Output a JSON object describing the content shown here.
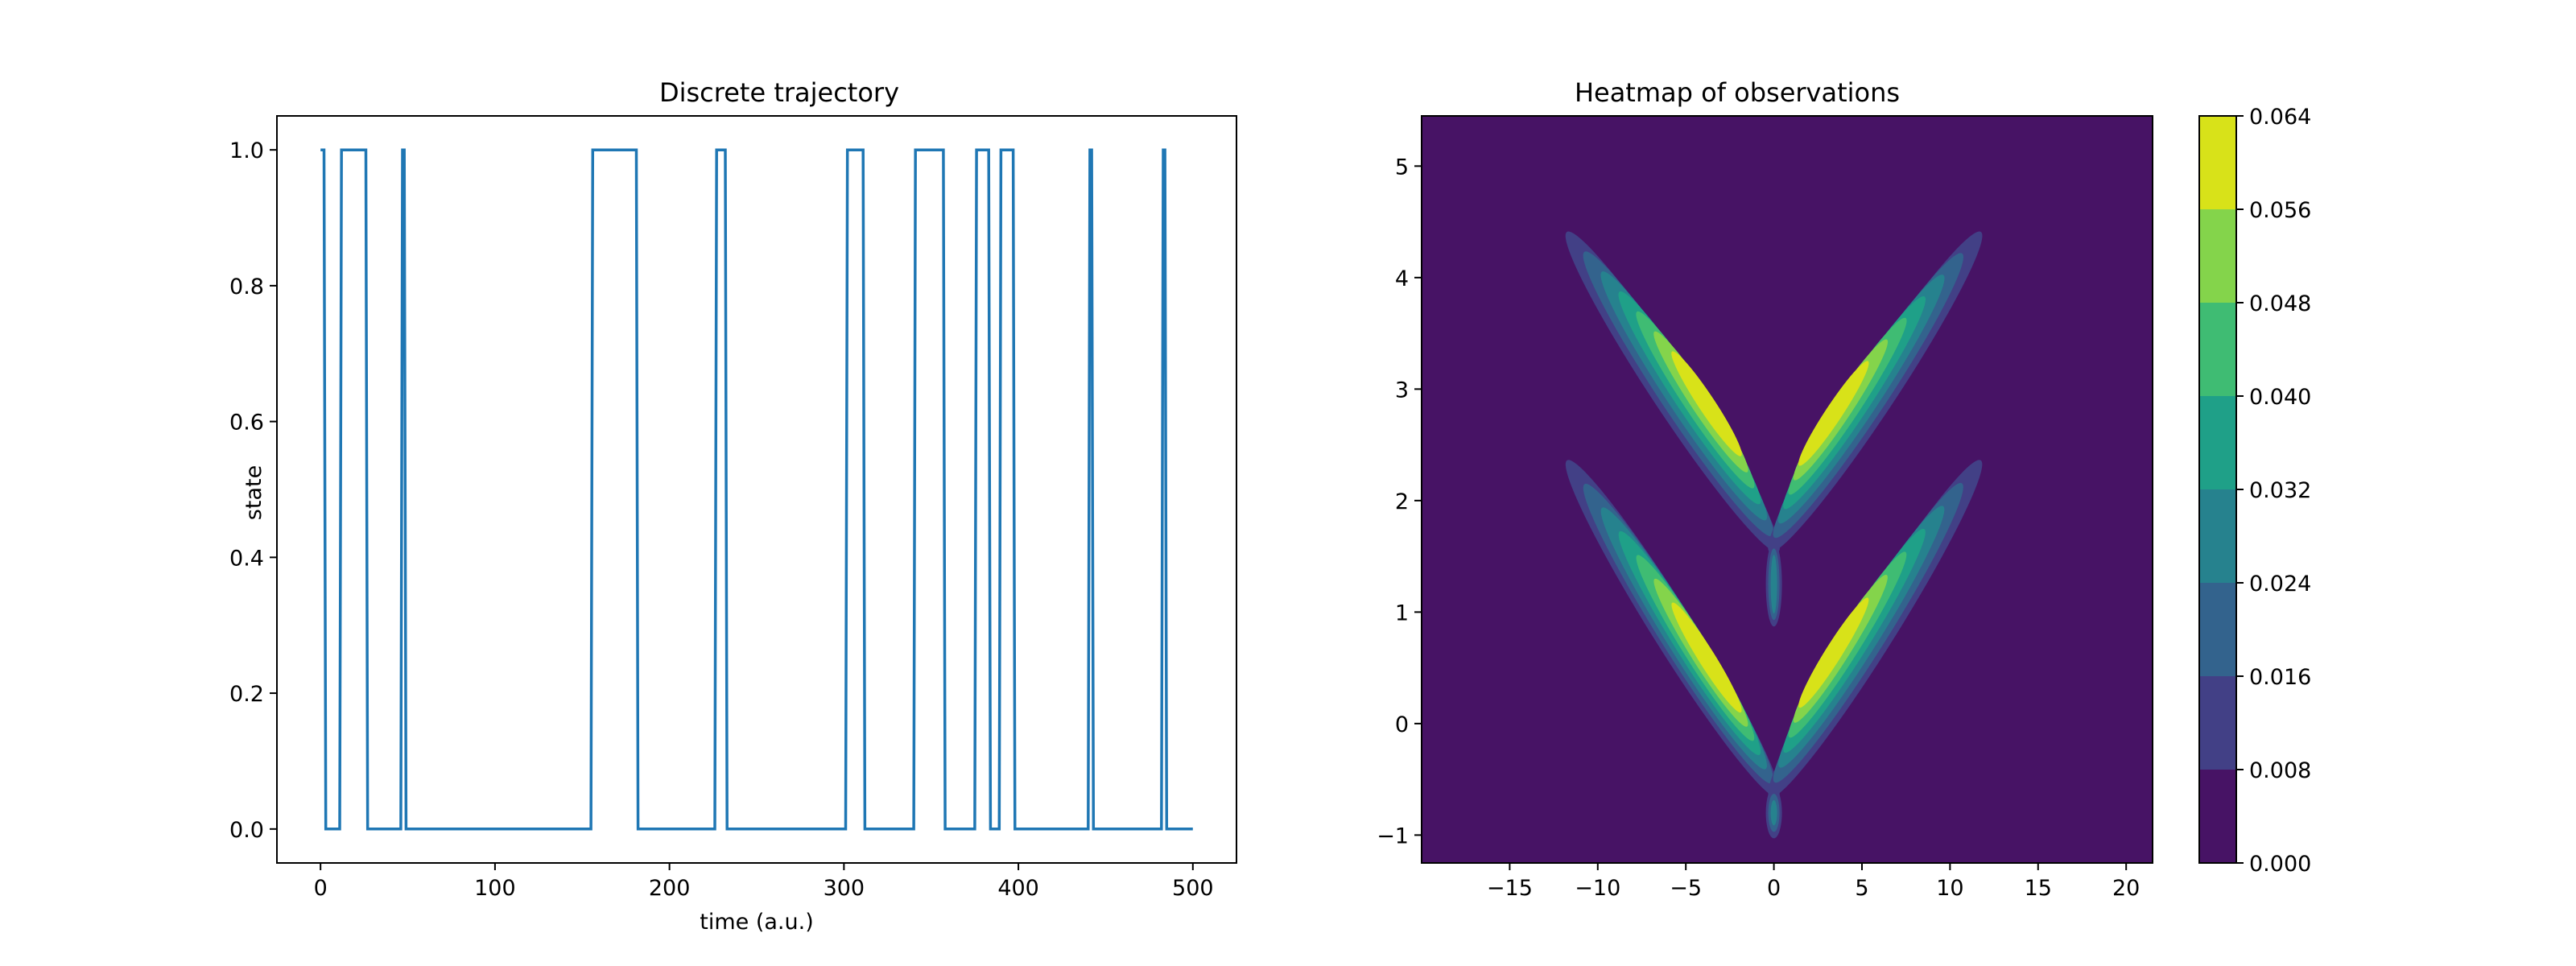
{
  "chart_data": [
    {
      "type": "line",
      "title": "Discrete trajectory",
      "xlabel": "time (a.u.)",
      "ylabel": "state",
      "xlim": [
        -25,
        525
      ],
      "ylim": [
        -0.05,
        1.05
      ],
      "xticks": [
        0,
        100,
        200,
        300,
        400,
        500
      ],
      "yticks": [
        0.0,
        0.2,
        0.4,
        0.6,
        0.8,
        1.0
      ],
      "xtick_labels": [
        "0",
        "100",
        "200",
        "300",
        "400",
        "500"
      ],
      "ytick_labels": [
        "0.0",
        "0.2",
        "0.4",
        "0.6",
        "0.8",
        "1.0"
      ],
      "grid": false,
      "series": [
        {
          "color": "#1f77b4",
          "x": [
            0,
            2,
            3,
            11,
            12,
            26,
            27,
            46,
            47,
            48,
            49,
            155,
            156,
            181,
            182,
            226,
            227,
            232,
            233,
            301,
            302,
            311,
            312,
            340,
            341,
            357,
            358,
            375,
            376,
            383,
            384,
            389,
            390,
            397,
            398,
            440,
            441,
            442,
            443,
            482,
            483,
            484,
            485,
            500
          ],
          "y": [
            1,
            1,
            0,
            0,
            1,
            1,
            0,
            0,
            1,
            1,
            0,
            0,
            1,
            1,
            0,
            0,
            1,
            1,
            0,
            0,
            1,
            1,
            0,
            0,
            1,
            1,
            0,
            0,
            1,
            1,
            0,
            0,
            1,
            1,
            0,
            0,
            1,
            1,
            0,
            0,
            1,
            1,
            0,
            0
          ]
        }
      ]
    },
    {
      "type": "heatmap",
      "title": "Heatmap of observations",
      "xlim": [
        -20,
        21.5
      ],
      "ylim": [
        -1.25,
        5.45
      ],
      "xticks": [
        -15,
        -10,
        -5,
        0,
        5,
        10,
        15,
        20
      ],
      "yticks": [
        -1,
        0,
        1,
        2,
        3,
        4,
        5
      ],
      "xtick_labels": [
        "−15",
        "−10",
        "−5",
        "0",
        "5",
        "10",
        "15",
        "20"
      ],
      "ytick_labels": [
        "−1",
        "0",
        "1",
        "2",
        "3",
        "4",
        "5"
      ],
      "colorscale": "viridis",
      "levels": [
        0.0,
        0.008,
        0.016,
        0.024,
        0.032,
        0.04,
        0.048,
        0.056,
        0.064
      ],
      "colorbar_labels": [
        "0.000",
        "0.008",
        "0.016",
        "0.024",
        "0.032",
        "0.040",
        "0.048",
        "0.056",
        "0.064"
      ],
      "level_colors": [
        "#471365",
        "#424086",
        "#33638d",
        "#26828e",
        "#1fa088",
        "#3fbc73",
        "#84d44b",
        "#d8e219"
      ],
      "approx_peak": 0.063,
      "components": [
        {
          "start": [
            0,
            1.6
          ],
          "end": [
            -11.5,
            4.35
          ],
          "peak": [
            -3.5,
            2.85
          ]
        },
        {
          "start": [
            0,
            1.6
          ],
          "end": [
            11.5,
            4.35
          ],
          "peak": [
            3.0,
            2.75
          ]
        },
        {
          "start": [
            0,
            -0.6
          ],
          "end": [
            -11.5,
            2.3
          ],
          "peak": [
            -3.5,
            0.55
          ]
        },
        {
          "start": [
            0,
            -0.6
          ],
          "end": [
            11.5,
            2.3
          ],
          "peak": [
            3.0,
            0.6
          ]
        }
      ]
    }
  ]
}
